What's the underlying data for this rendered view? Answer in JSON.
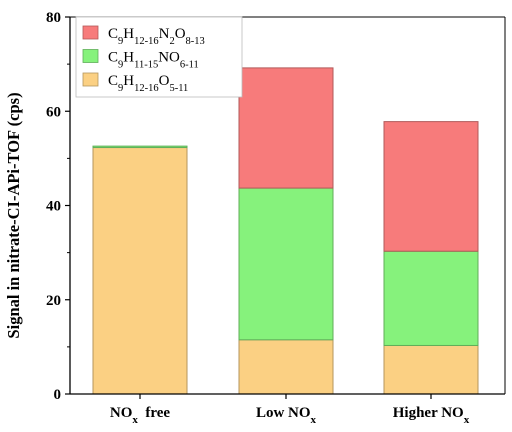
{
  "chart_data": {
    "type": "bar",
    "stacked": true,
    "ylabel": "Signal in nitrate-CI-APi-TOF (cps)",
    "xlabel": "",
    "ylim": [
      0,
      80
    ],
    "yticks": [
      0,
      20,
      40,
      60,
      80
    ],
    "grid": false,
    "legend_position": "top-left",
    "categories": [
      {
        "label": "NO",
        "sub": "x",
        "tail": "  free"
      },
      {
        "label": "Low NO",
        "sub": "x",
        "tail": ""
      },
      {
        "label": "Higher NO",
        "sub": "x",
        "tail": ""
      }
    ],
    "series": [
      {
        "name": "C9H12-16O5-11",
        "name_parts": [
          [
            "C",
            ""
          ],
          [
            "9",
            "sub"
          ],
          [
            "H",
            ""
          ],
          [
            "12-16",
            "sub"
          ],
          [
            "O",
            ""
          ],
          [
            "5-11",
            "sub"
          ]
        ],
        "color": "#FBD083",
        "values": [
          52.3,
          11.5,
          10.3
        ]
      },
      {
        "name": "C9H11-15NO6-11",
        "name_parts": [
          [
            "C",
            ""
          ],
          [
            "9",
            "sub"
          ],
          [
            "H",
            ""
          ],
          [
            "11-15",
            "sub"
          ],
          [
            "NO",
            ""
          ],
          [
            "6-11",
            "sub"
          ]
        ],
        "color": "#86F27C",
        "values": [
          0.3,
          32.2,
          20.0
        ]
      },
      {
        "name": "C9H12-16N2O8-13",
        "name_parts": [
          [
            "C",
            ""
          ],
          [
            "9",
            "sub"
          ],
          [
            "H",
            ""
          ],
          [
            "12-16",
            "sub"
          ],
          [
            "N",
            ""
          ],
          [
            "2",
            "sub"
          ],
          [
            "O",
            ""
          ],
          [
            "8-13",
            "sub"
          ]
        ],
        "color": "#F77B7B",
        "values": [
          0,
          25.5,
          27.5
        ]
      }
    ]
  }
}
